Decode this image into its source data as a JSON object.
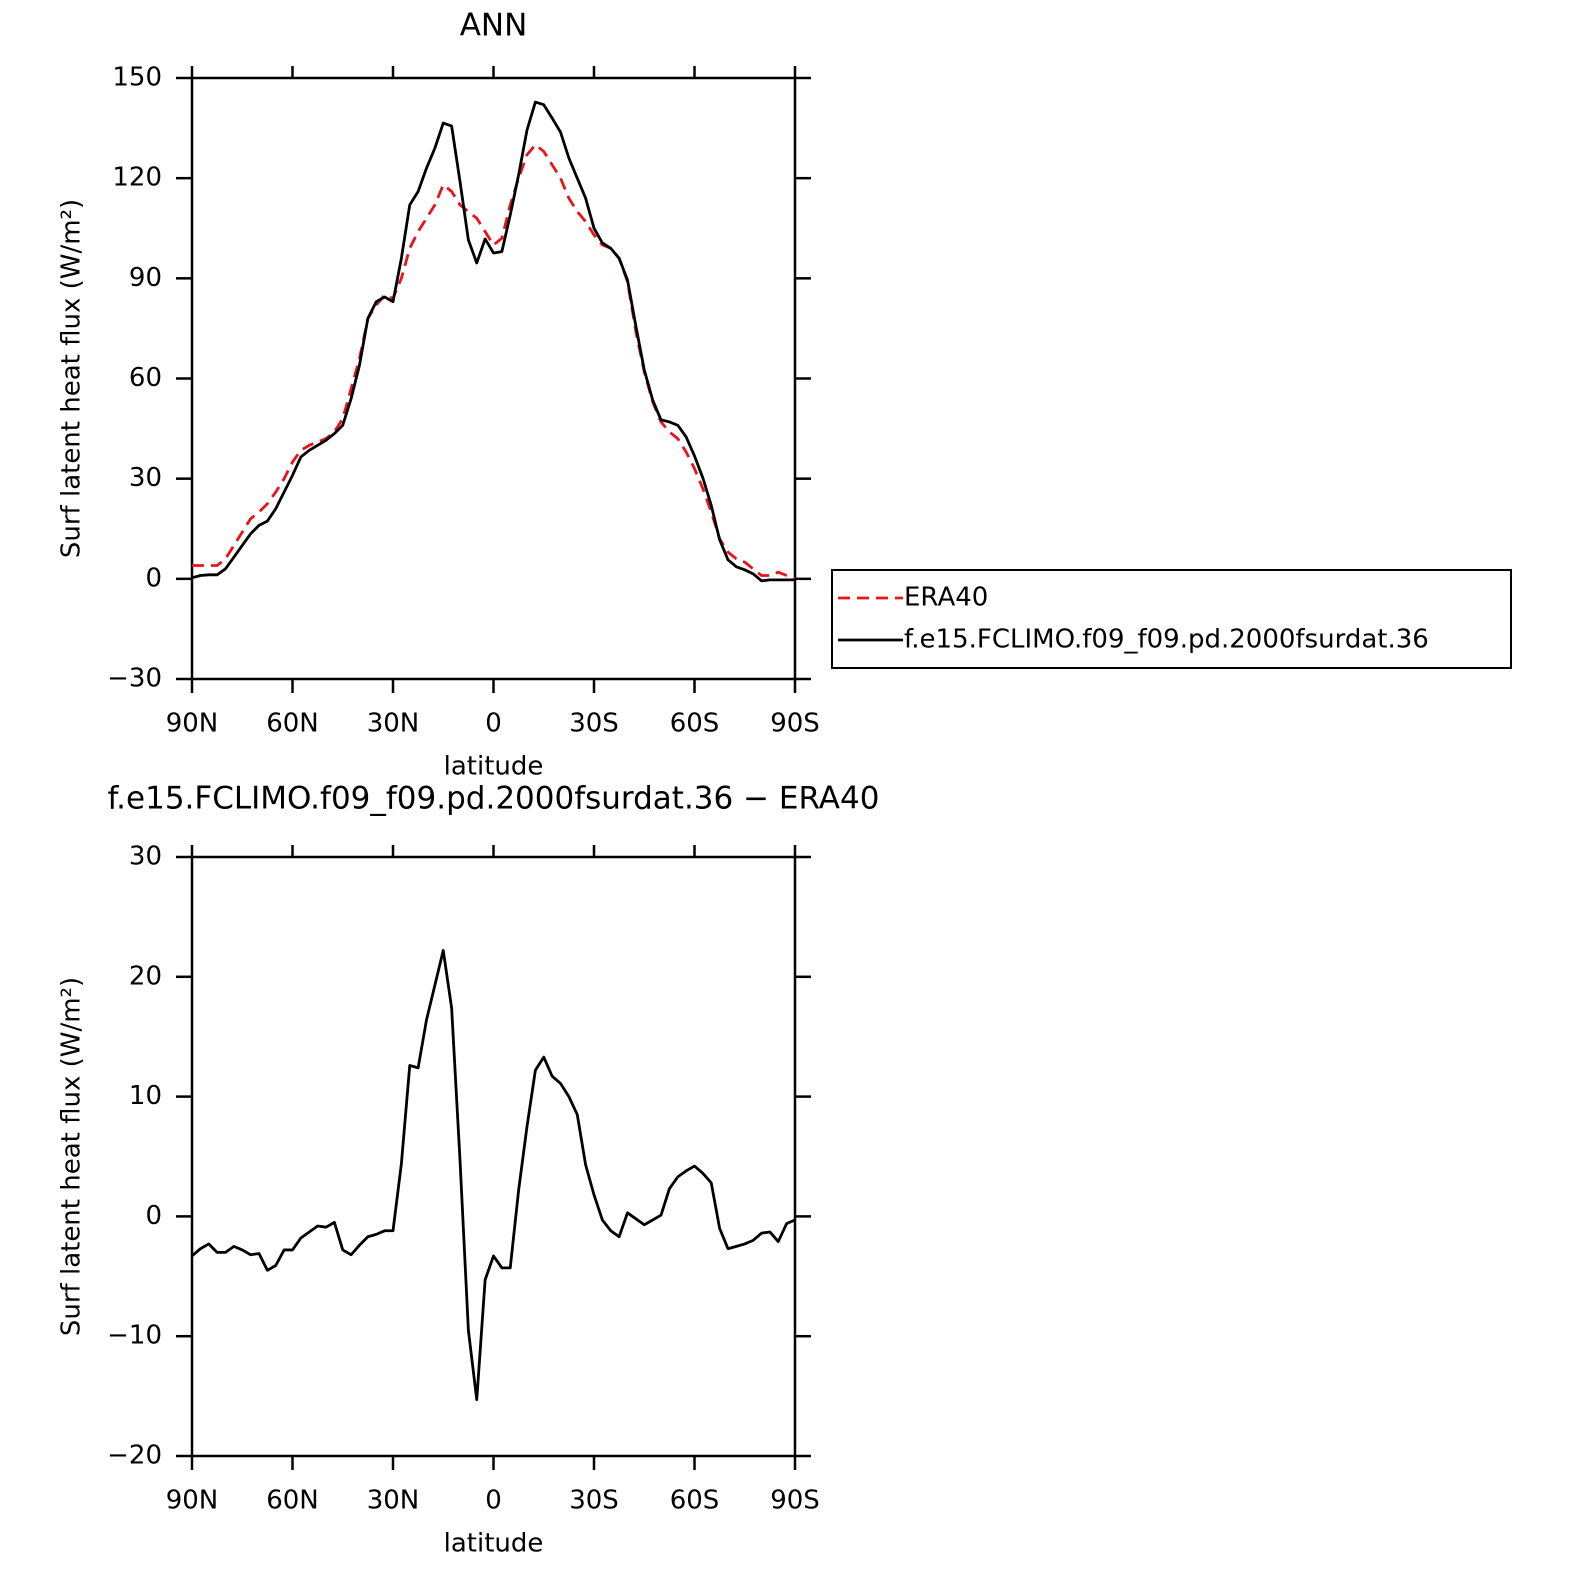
{
  "chart_data": [
    {
      "type": "line",
      "title": "ANN",
      "xlabel": "latitude",
      "ylabel": "Surf latent heat flux (W/m²)",
      "x": [
        90,
        87.5,
        85,
        82.5,
        80,
        77.5,
        75,
        72.5,
        70,
        67.5,
        65,
        62.5,
        60,
        57.5,
        55,
        52.5,
        50,
        47.5,
        45,
        42.5,
        40,
        37.5,
        35,
        32.5,
        30,
        27.5,
        25,
        22.5,
        20,
        17.5,
        15,
        12.5,
        10,
        7.5,
        5,
        2.5,
        0,
        -2.5,
        -5,
        -7.5,
        -10,
        -12.5,
        -15,
        -17.5,
        -20,
        -22.5,
        -25,
        -27.5,
        -30,
        -32.5,
        -35,
        -37.5,
        -40,
        -42.5,
        -45,
        -47.5,
        -50,
        -52.5,
        -55,
        -57.5,
        -60,
        -62.5,
        -65,
        -67.5,
        -70,
        -72.5,
        -75,
        -77.5,
        -80,
        -82.5,
        -85,
        -87.5,
        -90
      ],
      "series": [
        {
          "name": "ERA40",
          "color": "#e8141a",
          "linestyle": "dashed",
          "values": [
            4,
            4,
            4,
            4,
            6,
            10,
            14,
            18,
            20,
            22.5,
            26,
            30,
            35,
            38.5,
            40,
            41,
            42,
            44,
            48,
            57,
            66,
            78,
            82,
            85,
            84,
            90,
            99,
            104,
            108,
            112,
            118,
            116,
            112,
            110,
            108,
            104,
            100,
            102,
            112,
            120,
            127,
            130,
            128,
            124,
            120,
            114,
            110,
            107,
            103,
            100,
            99,
            96,
            89,
            74,
            62,
            53,
            47,
            44,
            42,
            38,
            33,
            27,
            20,
            12,
            8,
            6,
            5,
            3,
            1,
            1,
            2,
            1,
            0
          ]
        },
        {
          "name": "f.e15.FCLIMO.f09_f09.pd.2000fsurdat.36",
          "color": "#000000",
          "linestyle": "solid",
          "values": [
            0.3,
            1,
            1.2,
            1.2,
            3,
            6.5,
            10,
            13.5,
            16,
            17.3,
            21,
            26,
            31,
            36.5,
            38.5,
            40,
            41.5,
            43.5,
            46,
            54,
            64,
            78,
            83,
            84.4,
            83,
            96,
            112,
            116,
            123,
            129,
            136.5,
            135.6,
            119,
            101.5,
            94.6,
            101.8,
            97.6,
            98,
            109,
            121,
            134.4,
            142.8,
            142,
            138,
            133.8,
            126,
            120,
            114,
            105,
            100.6,
            99,
            96,
            89.5,
            75.7,
            62.6,
            53.6,
            47.6,
            47,
            46,
            42.5,
            36.8,
            30.2,
            22,
            11.7,
            5.7,
            3.6,
            2.7,
            1.5,
            -0.6,
            -0.3,
            -0.3,
            -0.3,
            -0.3
          ]
        }
      ],
      "xlim": [
        90,
        -90
      ],
      "xticks": [
        {
          "value": 90,
          "label": "90N"
        },
        {
          "value": 60,
          "label": "60N"
        },
        {
          "value": 30,
          "label": "30N"
        },
        0,
        {
          "value": -30,
          "label": "30S"
        },
        {
          "value": -60,
          "label": "60S"
        },
        {
          "value": -90,
          "label": "90S"
        }
      ],
      "ylim": [
        -30,
        150
      ],
      "yticks": [
        {
          "value": -30,
          "label": "−30"
        },
        0,
        30,
        60,
        90,
        120,
        150
      ],
      "legend": "right"
    },
    {
      "type": "line",
      "title": "f.e15.FCLIMO.f09_f09.pd.2000fsurdat.36 − ERA40",
      "xlabel": "latitude",
      "ylabel": "Surf latent heat flux (W/m²)",
      "x": [
        90,
        87.5,
        85,
        82.5,
        80,
        77.5,
        75,
        72.5,
        70,
        67.5,
        65,
        62.5,
        60,
        57.5,
        55,
        52.5,
        50,
        47.5,
        45,
        42.5,
        40,
        37.5,
        35,
        32.5,
        30,
        27.5,
        25,
        22.5,
        20,
        17.5,
        15,
        12.5,
        10,
        7.5,
        5,
        2.5,
        0,
        -2.5,
        -5,
        -7.5,
        -10,
        -12.5,
        -15,
        -17.5,
        -20,
        -22.5,
        -25,
        -27.5,
        -30,
        -32.5,
        -35,
        -37.5,
        -40,
        -42.5,
        -45,
        -47.5,
        -50,
        -52.5,
        -55,
        -57.5,
        -60,
        -62.5,
        -65,
        -67.5,
        -70,
        -72.5,
        -75,
        -77.5,
        -80,
        -82.5,
        -85,
        -87.5,
        -90
      ],
      "series": [
        {
          "color": "#000000",
          "linestyle": "solid",
          "values": [
            -3.3,
            -2.7,
            -2.3,
            -3,
            -3,
            -2.5,
            -2.8,
            -3.2,
            -3.1,
            -4.5,
            -4.1,
            -2.8,
            -2.8,
            -1.8,
            -1.3,
            -0.8,
            -0.9,
            -0.5,
            -2.8,
            -3.2,
            -2.4,
            -1.7,
            -1.5,
            -1.2,
            -1.2,
            4.4,
            12.6,
            12.4,
            16.4,
            19.3,
            22.2,
            17.4,
            4.7,
            -9.5,
            -15.3,
            -5.3,
            -3.3,
            -4.3,
            -4.3,
            2.2,
            7.5,
            12.2,
            13.3,
            11.7,
            11.1,
            10,
            8.5,
            4.3,
            1.8,
            -0.3,
            -1.2,
            -1.7,
            0.3,
            -0.2,
            -0.7,
            -0.3,
            0.1,
            2.3,
            3.3,
            3.8,
            4.2,
            3.6,
            2.8,
            -1,
            -2.7,
            -2.5,
            -2.3,
            -2,
            -1.4,
            -1.3,
            -2.1,
            -0.6,
            -0.3
          ]
        }
      ],
      "xlim": [
        90,
        -90
      ],
      "xticks": [
        {
          "value": 90,
          "label": "90N"
        },
        {
          "value": 60,
          "label": "60N"
        },
        {
          "value": 30,
          "label": "30N"
        },
        0,
        {
          "value": -30,
          "label": "30S"
        },
        {
          "value": -60,
          "label": "60S"
        },
        {
          "value": -90,
          "label": "90S"
        }
      ],
      "ylim": [
        -20,
        30
      ],
      "yticks": [
        {
          "value": -20,
          "label": "−20"
        },
        {
          "value": -10,
          "label": "−10"
        },
        0,
        10,
        20,
        30
      ]
    }
  ]
}
